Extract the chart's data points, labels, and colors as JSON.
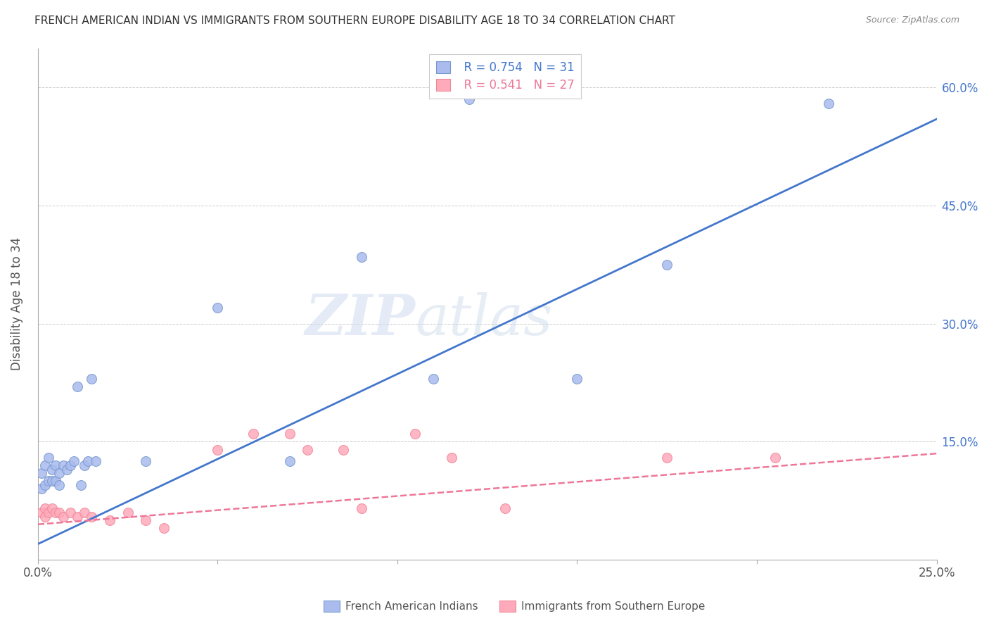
{
  "title": "FRENCH AMERICAN INDIAN VS IMMIGRANTS FROM SOUTHERN EUROPE DISABILITY AGE 18 TO 34 CORRELATION CHART",
  "source": "Source: ZipAtlas.com",
  "ylabel": "Disability Age 18 to 34",
  "right_yticks": [
    "60.0%",
    "45.0%",
    "30.0%",
    "15.0%"
  ],
  "right_ytick_vals": [
    0.6,
    0.45,
    0.3,
    0.15
  ],
  "watermark_zip": "ZIP",
  "watermark_atlas": "atlas",
  "legend_blue_r": "R = 0.754",
  "legend_blue_n": "N = 31",
  "legend_pink_r": "R = 0.541",
  "legend_pink_n": "N = 27",
  "legend_blue_label": "French American Indians",
  "legend_pink_label": "Immigrants from Southern Europe",
  "blue_scatter_fill": "#AABBEE",
  "blue_scatter_edge": "#7799CC",
  "pink_scatter_fill": "#FFAABB",
  "pink_scatter_edge": "#EE8899",
  "line_blue_color": "#4477CC",
  "line_pink_color": "#EE7799",
  "title_color": "#333333",
  "axis_label_color": "#555555",
  "tick_color_blue": "#4477CC",
  "tick_color_pink": "#EE7799",
  "legend_r_color": "#4477CC",
  "legend_n_color": "#333333",
  "blue_scatter_x": [
    0.001,
    0.001,
    0.002,
    0.002,
    0.003,
    0.003,
    0.004,
    0.004,
    0.005,
    0.005,
    0.006,
    0.006,
    0.007,
    0.008,
    0.009,
    0.01,
    0.011,
    0.012,
    0.013,
    0.014,
    0.015,
    0.016,
    0.03,
    0.05,
    0.07,
    0.09,
    0.11,
    0.12,
    0.15,
    0.175,
    0.22
  ],
  "blue_scatter_y": [
    0.09,
    0.11,
    0.095,
    0.12,
    0.1,
    0.13,
    0.1,
    0.115,
    0.1,
    0.12,
    0.095,
    0.11,
    0.12,
    0.115,
    0.12,
    0.125,
    0.22,
    0.095,
    0.12,
    0.125,
    0.23,
    0.125,
    0.125,
    0.32,
    0.125,
    0.385,
    0.23,
    0.585,
    0.23,
    0.375,
    0.58
  ],
  "pink_scatter_x": [
    0.001,
    0.002,
    0.002,
    0.003,
    0.004,
    0.005,
    0.006,
    0.007,
    0.009,
    0.011,
    0.013,
    0.015,
    0.02,
    0.025,
    0.03,
    0.035,
    0.05,
    0.06,
    0.07,
    0.075,
    0.085,
    0.09,
    0.105,
    0.115,
    0.13,
    0.175,
    0.205
  ],
  "pink_scatter_y": [
    0.06,
    0.065,
    0.055,
    0.06,
    0.065,
    0.06,
    0.06,
    0.055,
    0.06,
    0.055,
    0.06,
    0.055,
    0.05,
    0.06,
    0.05,
    0.04,
    0.14,
    0.16,
    0.16,
    0.14,
    0.14,
    0.065,
    0.16,
    0.13,
    0.065,
    0.13,
    0.13
  ],
  "blue_line_x": [
    0.0,
    0.25
  ],
  "blue_line_y": [
    0.02,
    0.56
  ],
  "pink_line_x": [
    0.0,
    0.25
  ],
  "pink_line_y": [
    0.045,
    0.135
  ],
  "xlim": [
    0.0,
    0.25
  ],
  "ylim": [
    0.0,
    0.65
  ],
  "background_color": "#FFFFFF",
  "grid_color": "#CCCCCC",
  "scatter_size": 100
}
